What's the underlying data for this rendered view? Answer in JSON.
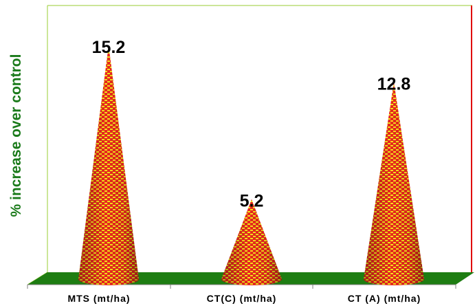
{
  "chart_data": {
    "type": "bar",
    "bar_shape": "cone",
    "categories": [
      "MTS (mt/ha)",
      "CT(C) (mt/ha)",
      "CT (A) (mt/ha)"
    ],
    "values": [
      15.2,
      5.2,
      12.8
    ],
    "data_labels": [
      "15.2",
      "5.2",
      "12.8"
    ],
    "title": "",
    "xlabel": "",
    "ylabel": "% increase over control",
    "ylim": [
      0,
      16.5
    ],
    "grid": false,
    "legend": "none"
  },
  "colors": {
    "cone_fill": "#e8281e",
    "cone_pattern": "#f2e21a",
    "floor": "#1e7d12",
    "wall_edge": "#9acd32",
    "right_line": "#e00000",
    "ylabel": "#1a7a1a"
  }
}
